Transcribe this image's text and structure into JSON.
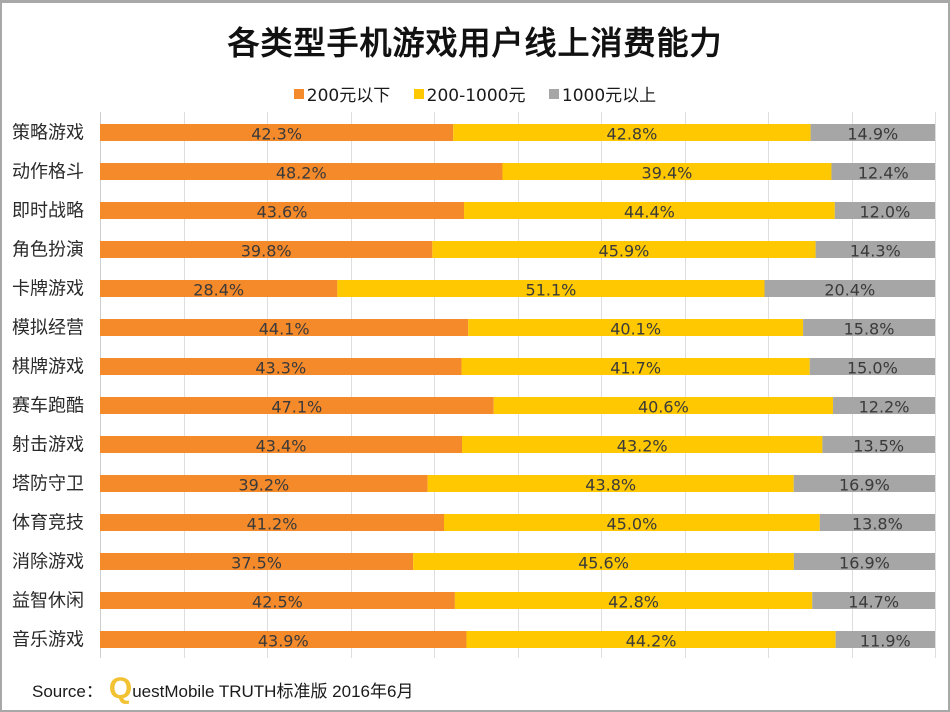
{
  "chart_data": {
    "type": "bar",
    "orientation": "horizontal",
    "stacked": "percent",
    "title": "各类型手机游戏用户线上消费能力",
    "xlabel": "",
    "ylabel": "",
    "xlim": [
      0,
      100
    ],
    "grid": true,
    "legend_position": "top",
    "categories": [
      "策略游戏",
      "动作格斗",
      "即时战略",
      "角色扮演",
      "卡牌游戏",
      "模拟经营",
      "棋牌游戏",
      "赛车跑酷",
      "射击游戏",
      "塔防守卫",
      "体育竞技",
      "消除游戏",
      "益智休闲",
      "音乐游戏"
    ],
    "series": [
      {
        "name": "200元以下",
        "color": "#F58A2B",
        "values": [
          42.3,
          48.2,
          43.6,
          39.8,
          28.4,
          44.1,
          43.3,
          47.1,
          43.4,
          39.2,
          41.2,
          37.5,
          42.5,
          43.9
        ],
        "labels": [
          "42.3%",
          "48.2%",
          "43.6%",
          "39.8%",
          "28.4%",
          "44.1%",
          "43.3%",
          "47.1%",
          "43.4%",
          "39.2%",
          "41.2%",
          "37.5%",
          "42.5%",
          "43.9%"
        ]
      },
      {
        "name": "200-1000元",
        "color": "#FFC800",
        "values": [
          42.8,
          39.4,
          44.4,
          45.9,
          51.1,
          40.1,
          41.7,
          40.6,
          43.2,
          43.8,
          45.0,
          45.6,
          42.8,
          44.2
        ],
        "labels": [
          "42.8%",
          "39.4%",
          "44.4%",
          "45.9%",
          "51.1%",
          "40.1%",
          "41.7%",
          "40.6%",
          "43.2%",
          "43.8%",
          "45.0%",
          "45.6%",
          "42.8%",
          "44.2%"
        ]
      },
      {
        "name": "1000元以上",
        "color": "#A6A6A6",
        "values": [
          14.9,
          12.4,
          12.0,
          14.3,
          20.4,
          15.8,
          15.0,
          12.2,
          13.5,
          16.9,
          13.8,
          16.9,
          14.7,
          11.9
        ],
        "labels": [
          "14.9%",
          "12.4%",
          "12.0%",
          "14.3%",
          "20.4%",
          "15.8%",
          "15.0%",
          "12.2%",
          "13.5%",
          "16.9%",
          "13.8%",
          "16.9%",
          "14.7%",
          "11.9%"
        ]
      }
    ]
  },
  "footer": {
    "source_prefix": "Source：",
    "logo_letter": "Q",
    "source_rest": "uestMobile TRUTH标准版 2016年6月"
  }
}
